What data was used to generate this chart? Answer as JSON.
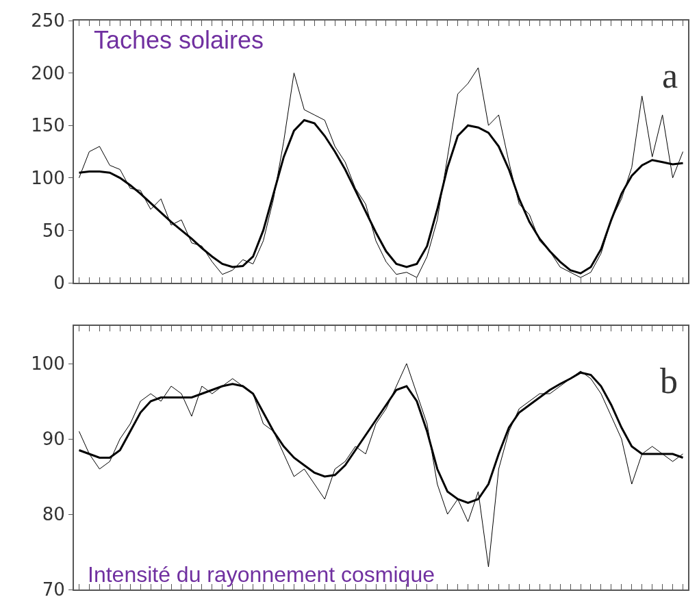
{
  "chart_data": [
    {
      "type": "line",
      "categories": [
        null,
        null,
        null,
        null,
        null,
        null,
        null,
        null,
        null,
        null,
        null,
        null,
        null,
        null,
        null,
        null,
        null,
        null,
        null,
        null,
        null,
        null,
        null,
        null,
        null,
        null,
        null,
        null,
        null,
        null,
        null,
        null,
        null,
        null,
        null,
        null,
        null,
        null,
        null,
        null,
        null,
        null,
        null,
        null,
        null,
        null,
        null,
        null,
        null,
        null,
        null,
        null,
        null,
        null,
        null,
        null,
        null,
        null,
        null,
        null
      ],
      "series": [
        {
          "color": "#000000",
          "values": [
            100,
            125,
            130,
            112,
            108,
            90,
            88,
            70,
            80,
            55,
            60,
            38,
            35,
            20,
            8,
            12,
            22,
            18,
            40,
            80,
            135,
            200,
            165,
            160,
            155,
            130,
            115,
            90,
            75,
            40,
            20,
            8,
            10,
            5,
            25,
            60,
            120,
            180,
            190,
            205,
            150,
            160,
            115,
            75,
            65,
            40,
            30,
            15,
            10,
            5,
            10,
            28,
            60,
            80,
            110,
            178,
            120,
            160,
            100,
            125
          ]
        },
        {
          "color": "#000000",
          "values": [
            105,
            106,
            106,
            105,
            100,
            93,
            85,
            76,
            67,
            58,
            50,
            42,
            33,
            25,
            18,
            15,
            16,
            25,
            50,
            85,
            120,
            145,
            155,
            152,
            140,
            125,
            108,
            88,
            68,
            48,
            30,
            18,
            15,
            18,
            35,
            70,
            110,
            140,
            150,
            148,
            143,
            130,
            108,
            80,
            58,
            42,
            30,
            20,
            12,
            9,
            15,
            32,
            60,
            85,
            102,
            112,
            117,
            115,
            113,
            114
          ]
        }
      ],
      "ylim": [
        0,
        250
      ],
      "yticks": [
        0,
        50,
        100,
        150,
        200,
        250
      ],
      "tick_labels": "y",
      "annotations": [
        "Taches solaires",
        "a"
      ]
    },
    {
      "type": "line",
      "categories": [
        null,
        null,
        null,
        null,
        null,
        null,
        null,
        null,
        null,
        null,
        null,
        null,
        null,
        null,
        null,
        null,
        null,
        null,
        null,
        null,
        null,
        null,
        null,
        null,
        null,
        null,
        null,
        null,
        null,
        null,
        null,
        null,
        null,
        null,
        null,
        null,
        null,
        null,
        null,
        null,
        null,
        null,
        null,
        null,
        null,
        null,
        null,
        null,
        null,
        null,
        null,
        null,
        null,
        null,
        null,
        null,
        null,
        null,
        null,
        null
      ],
      "series": [
        {
          "color": "#000000",
          "values": [
            91,
            88,
            86,
            87,
            90,
            92,
            95,
            96,
            95,
            97,
            96,
            93,
            97,
            96,
            97,
            98,
            97,
            96,
            92,
            91,
            88,
            85,
            86,
            84,
            82,
            86,
            87,
            89,
            88,
            92,
            94,
            97,
            100,
            96,
            92,
            84,
            80,
            82,
            79,
            83,
            73,
            86,
            91,
            94,
            95,
            96,
            96,
            97,
            98,
            99,
            98,
            96,
            93,
            90,
            84,
            88,
            89,
            88,
            87,
            88
          ]
        },
        {
          "color": "#000000",
          "values": [
            88.5,
            88,
            87.5,
            87.5,
            88.5,
            91,
            93.5,
            95,
            95.5,
            95.5,
            95.5,
            95.5,
            96,
            96.5,
            97,
            97.3,
            97,
            96,
            93.5,
            91,
            89,
            87.5,
            86.5,
            85.5,
            85,
            85.2,
            86.5,
            88.5,
            90.5,
            92.5,
            94.5,
            96.5,
            97,
            95,
            91,
            86,
            83,
            82,
            81.5,
            82,
            84,
            88,
            91.5,
            93.5,
            94.5,
            95.5,
            96.5,
            97.3,
            98,
            98.8,
            98.5,
            97,
            94.5,
            91.5,
            89,
            88,
            88,
            88,
            88,
            87.5
          ]
        }
      ],
      "ylim": [
        70,
        105
      ],
      "yticks": [
        70,
        80,
        90,
        100
      ],
      "tick_labels": "y",
      "annotations": [
        "b",
        "Intensité du rayonnement cosmique"
      ]
    }
  ]
}
